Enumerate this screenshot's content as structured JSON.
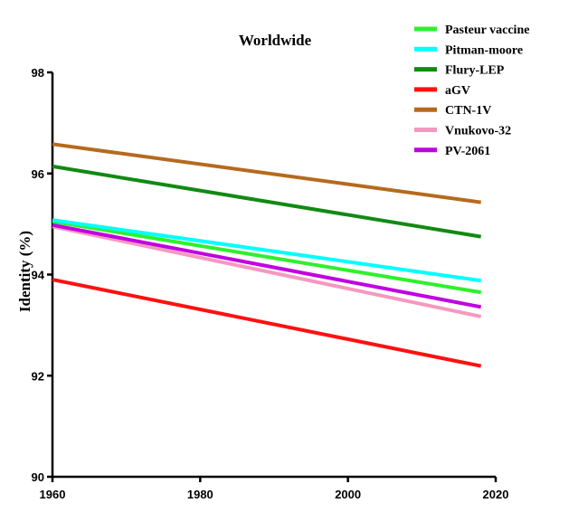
{
  "chart_data": {
    "type": "line",
    "title": "Worldwide",
    "xlabel": "",
    "ylabel": "Identity (%)",
    "xlim": [
      1960,
      2020
    ],
    "ylim": [
      90,
      98
    ],
    "xticks": [
      1960,
      1980,
      2000,
      2020
    ],
    "yticks": [
      90,
      92,
      94,
      96,
      98
    ],
    "grid": false,
    "legend_position": "top-right",
    "series": [
      {
        "name": "Pasteur vaccine",
        "color": "#2ef02e",
        "x": [
          1960,
          2018
        ],
        "y": [
          95.05,
          93.65
        ]
      },
      {
        "name": "Pitman-moore",
        "color": "#00ffff",
        "x": [
          1960,
          2018
        ],
        "y": [
          95.08,
          93.88
        ]
      },
      {
        "name": "Flury-LEP",
        "color": "#128a12",
        "x": [
          1960,
          2018
        ],
        "y": [
          96.14,
          94.75
        ]
      },
      {
        "name": "aGV",
        "color": "#ff1010",
        "x": [
          1960,
          2018
        ],
        "y": [
          93.9,
          92.19
        ]
      },
      {
        "name": "CTN-1V",
        "color": "#b56a1e",
        "x": [
          1960,
          2018
        ],
        "y": [
          96.58,
          95.43
        ]
      },
      {
        "name": "Vnukovo-32",
        "color": "#f598c0",
        "x": [
          1960,
          2018
        ],
        "y": [
          94.95,
          93.17
        ]
      },
      {
        "name": "PV-2061",
        "color": "#c000e0",
        "x": [
          1960,
          2018
        ],
        "y": [
          94.98,
          93.36
        ]
      }
    ]
  }
}
